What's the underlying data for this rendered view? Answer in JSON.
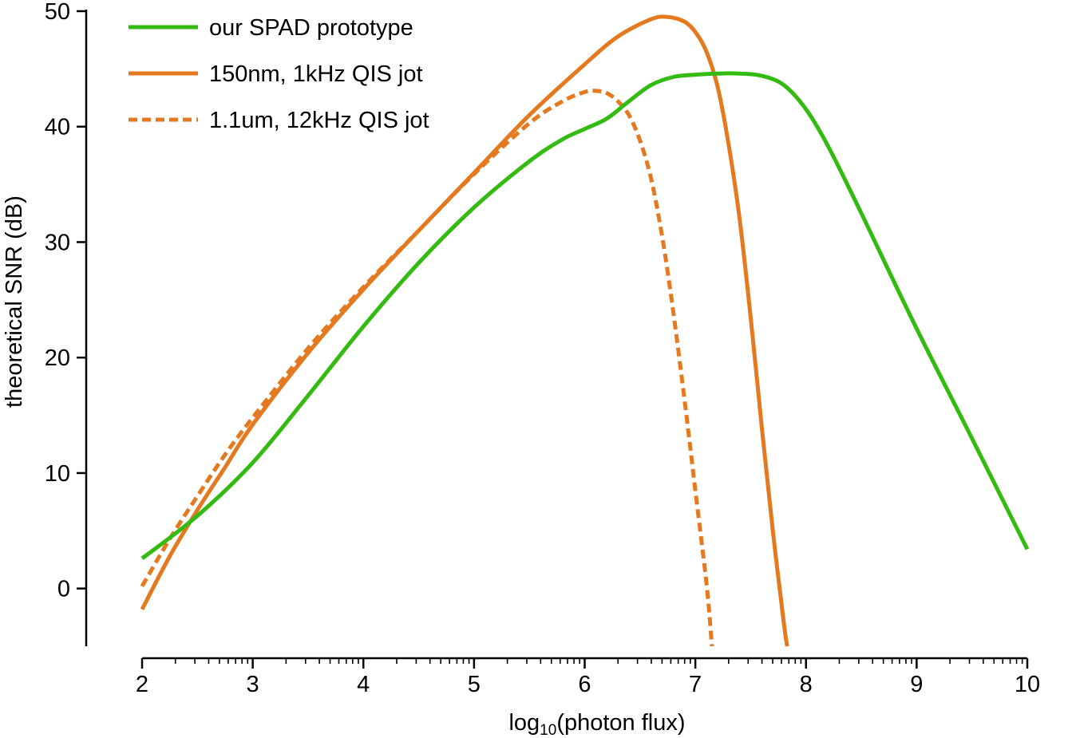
{
  "chart_data": {
    "type": "line",
    "title": "",
    "xlabel_base": "log",
    "xlabel_sub": "10",
    "xlabel_rest": "(photon flux)",
    "ylabel": "theoretical SNR (dB)",
    "xlim": [
      2,
      10
    ],
    "ylim": [
      -5,
      50
    ],
    "x_ticks": [
      2,
      3,
      4,
      5,
      6,
      7,
      8,
      9,
      10
    ],
    "y_ticks": [
      0,
      10,
      20,
      30,
      40,
      50
    ],
    "x_minor_ticks": "log-spaced within each decade",
    "grid": false,
    "legend_position": "top-left",
    "series": [
      {
        "name": "our SPAD prototype",
        "color": "#33bb11",
        "dash": "solid",
        "x": [
          2,
          2.5,
          3,
          3.5,
          4,
          4.5,
          5,
          5.5,
          5.8,
          6,
          6.2,
          6.4,
          6.6,
          6.8,
          7,
          7.2,
          7.4,
          7.6,
          7.8,
          8,
          8.2,
          8.5,
          9,
          9.5,
          10
        ],
        "y": [
          2.6,
          6.3,
          10.9,
          16.7,
          22.7,
          28.2,
          33.0,
          37.0,
          38.9,
          39.8,
          40.7,
          42.2,
          43.6,
          44.3,
          44.5,
          44.6,
          44.6,
          44.4,
          43.6,
          41.5,
          38.3,
          32.5,
          22.5,
          13.0,
          3.4
        ]
      },
      {
        "name": "150nm, 1kHz QIS jot",
        "color": "#e47920",
        "dash": "solid",
        "x": [
          2,
          2.25,
          2.5,
          2.75,
          3,
          3.5,
          4,
          4.5,
          5,
          5.5,
          6,
          6.3,
          6.6,
          6.75,
          6.9,
          7,
          7.1,
          7.2,
          7.3,
          7.4,
          7.5,
          7.6,
          7.7,
          7.8,
          7.83
        ],
        "y": [
          -1.8,
          2.8,
          6.8,
          10.5,
          14.2,
          20.4,
          25.9,
          31.0,
          36.0,
          41.0,
          45.4,
          47.8,
          49.3,
          49.5,
          49.1,
          48.2,
          46.5,
          43.5,
          38.5,
          32.0,
          23.5,
          14.0,
          5.0,
          -3.0,
          -5.0
        ]
      },
      {
        "name": "1.1um, 12kHz QIS jot",
        "color": "#e47920",
        "dash": "dashed",
        "x": [
          2,
          2.25,
          2.5,
          2.75,
          3,
          3.5,
          4,
          4.5,
          5,
          5.5,
          5.8,
          6,
          6.1,
          6.2,
          6.3,
          6.4,
          6.5,
          6.6,
          6.7,
          6.8,
          6.9,
          7,
          7.1,
          7.15
        ],
        "y": [
          0.2,
          4.3,
          8.0,
          11.6,
          14.8,
          20.8,
          26.1,
          31.0,
          35.9,
          40.3,
          42.2,
          43.0,
          43.1,
          42.9,
          42.2,
          41.0,
          38.8,
          35.5,
          30.5,
          24.0,
          16.5,
          8.5,
          0.5,
          -5.0
        ]
      }
    ]
  }
}
